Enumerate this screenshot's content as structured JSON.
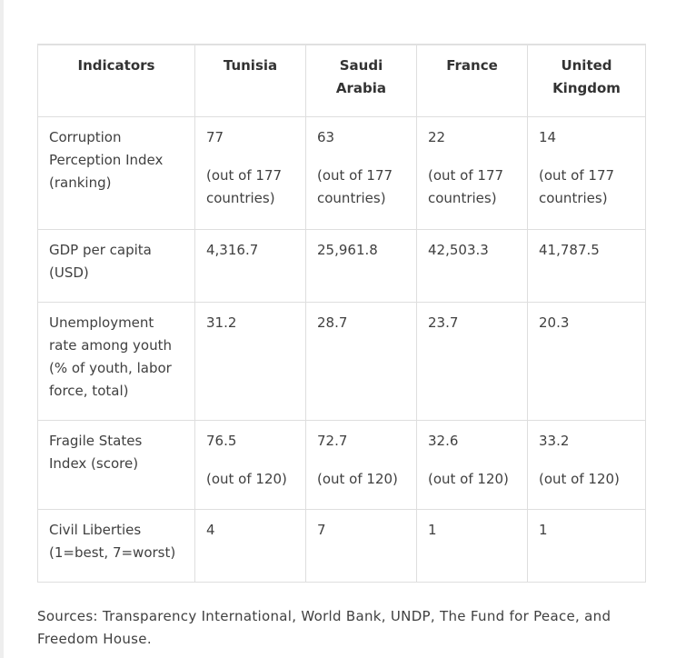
{
  "table": {
    "headers": [
      "Indicators",
      "Tunisia",
      "Saudi Arabia",
      "France",
      "United Kingdom"
    ],
    "rows": [
      {
        "label": "Corruption Perception Index (ranking)",
        "values": [
          {
            "v": "77",
            "note": "(out of 177 countries)"
          },
          {
            "v": "63",
            "note": "(out of 177 countries)"
          },
          {
            "v": "22",
            "note": "(out of 177 countries)"
          },
          {
            "v": "14",
            "note": "(out of 177 countries)"
          }
        ]
      },
      {
        "label": "GDP per capita (USD)",
        "values": [
          {
            "v": "4,316.7"
          },
          {
            "v": "25,961.8"
          },
          {
            "v": "42,503.3"
          },
          {
            "v": "41,787.5"
          }
        ]
      },
      {
        "label": "Unemployment rate among youth (% of youth, labor force, total)",
        "values": [
          {
            "v": "31.2"
          },
          {
            "v": "28.7"
          },
          {
            "v": "23.7"
          },
          {
            "v": "20.3"
          }
        ]
      },
      {
        "label": "Fragile States Index (score)",
        "values": [
          {
            "v": "76.5",
            "note": "(out of 120)"
          },
          {
            "v": "72.7",
            "note": "(out of 120)"
          },
          {
            "v": "32.6",
            "note": "(out of 120)"
          },
          {
            "v": "33.2",
            "note": "(out of 120)"
          }
        ]
      },
      {
        "label": "Civil Liberties (1=best, 7=worst)",
        "values": [
          {
            "v": "4"
          },
          {
            "v": "7"
          },
          {
            "v": "1"
          },
          {
            "v": "1"
          }
        ]
      }
    ]
  },
  "sources": "Sources: Transparency International, World Bank, UNDP, The Fund for Peace, and Freedom House."
}
